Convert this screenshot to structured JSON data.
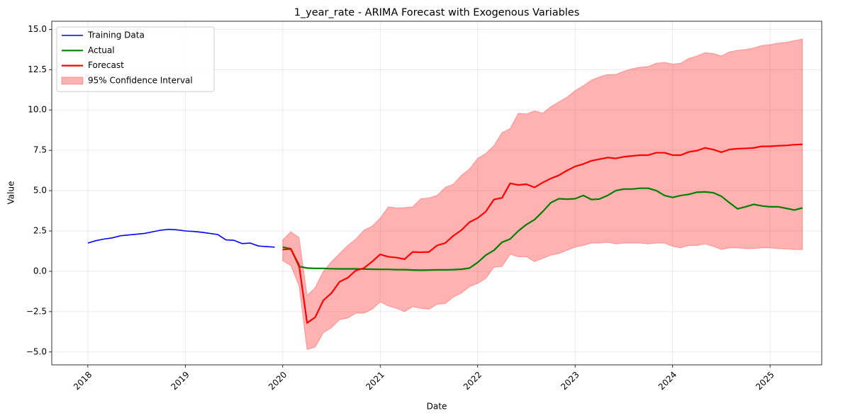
{
  "chart_data": {
    "type": "line",
    "title": "1_year_rate - ARIMA Forecast with Exogenous Variables",
    "x_label": "Date",
    "y_label": "Value",
    "xlim": [
      2017.63,
      2025.53
    ],
    "xticks": [
      2018,
      2019,
      2020,
      2021,
      2022,
      2023,
      2024,
      2025
    ],
    "ylim": [
      -5.8,
      15.5
    ],
    "yticks": [
      {
        "value": -5,
        "label": "−5.0"
      },
      {
        "value": -2.5,
        "label": "−2.5"
      },
      {
        "value": 0,
        "label": "0.0"
      },
      {
        "value": 2.5,
        "label": "2.5"
      },
      {
        "value": 5,
        "label": "5.0"
      },
      {
        "value": 7.5,
        "label": "7.5"
      },
      {
        "value": 10,
        "label": "10.0"
      },
      {
        "value": 12.5,
        "label": "12.5"
      },
      {
        "value": 15,
        "label": "15.0"
      }
    ],
    "grid": true,
    "legend": "upper left",
    "series": [
      {
        "name": "Training Data",
        "color": "#0000ff",
        "x": [
          2018,
          2018.083,
          2018.167,
          2018.25,
          2018.333,
          2018.417,
          2018.5,
          2018.583,
          2018.667,
          2018.75,
          2018.833,
          2018.917,
          2019,
          2019.083,
          2019.167,
          2019.25,
          2019.333,
          2019.417,
          2019.5,
          2019.583,
          2019.667,
          2019.75,
          2019.833,
          2019.917
        ],
        "values": [
          1.75,
          1.9,
          2.0,
          2.07,
          2.2,
          2.25,
          2.3,
          2.35,
          2.45,
          2.55,
          2.6,
          2.57,
          2.5,
          2.47,
          2.42,
          2.35,
          2.28,
          1.95,
          1.92,
          1.72,
          1.75,
          1.57,
          1.53,
          1.5
        ]
      },
      {
        "name": "Actual",
        "color": "#008000",
        "x": [
          2020,
          2020.083,
          2020.167,
          2020.25,
          2020.333,
          2020.417,
          2020.5,
          2020.583,
          2020.667,
          2020.75,
          2020.833,
          2020.917,
          2021,
          2021.083,
          2021.167,
          2021.25,
          2021.333,
          2021.417,
          2021.5,
          2021.583,
          2021.667,
          2021.75,
          2021.833,
          2021.917,
          2022,
          2022.083,
          2022.167,
          2022.25,
          2022.333,
          2022.417,
          2022.5,
          2022.583,
          2022.667,
          2022.75,
          2022.833,
          2022.917,
          2023,
          2023.083,
          2023.167,
          2023.25,
          2023.333,
          2023.417,
          2023.5,
          2023.583,
          2023.667,
          2023.75,
          2023.833,
          2023.917,
          2024,
          2024.083,
          2024.167,
          2024.25,
          2024.333,
          2024.417,
          2024.5,
          2024.583,
          2024.667,
          2024.75,
          2024.833,
          2024.917,
          2025,
          2025.083,
          2025.167,
          2025.25,
          2025.333
        ],
        "values": [
          1.5,
          1.4,
          0.3,
          0.2,
          0.18,
          0.18,
          0.16,
          0.15,
          0.15,
          0.15,
          0.14,
          0.13,
          0.12,
          0.12,
          0.1,
          0.1,
          0.08,
          0.07,
          0.08,
          0.09,
          0.09,
          0.1,
          0.13,
          0.2,
          0.55,
          1.0,
          1.3,
          1.8,
          2.0,
          2.5,
          2.9,
          3.2,
          3.7,
          4.25,
          4.5,
          4.47,
          4.5,
          4.7,
          4.45,
          4.48,
          4.7,
          5.0,
          5.1,
          5.1,
          5.15,
          5.15,
          5.0,
          4.7,
          4.58,
          4.7,
          4.77,
          4.9,
          4.92,
          4.87,
          4.65,
          4.25,
          3.87,
          4.0,
          4.15,
          4.05,
          4.0,
          4.0,
          3.9,
          3.8,
          3.93
        ]
      },
      {
        "name": "Forecast",
        "color": "#ff0000",
        "x": [
          2020,
          2020.083,
          2020.167,
          2020.25,
          2020.333,
          2020.417,
          2020.5,
          2020.583,
          2020.667,
          2020.75,
          2020.833,
          2020.917,
          2021,
          2021.083,
          2021.167,
          2021.25,
          2021.333,
          2021.417,
          2021.5,
          2021.583,
          2021.667,
          2021.75,
          2021.833,
          2021.917,
          2022,
          2022.083,
          2022.167,
          2022.25,
          2022.333,
          2022.417,
          2022.5,
          2022.583,
          2022.667,
          2022.75,
          2022.833,
          2022.917,
          2023,
          2023.083,
          2023.167,
          2023.25,
          2023.333,
          2023.417,
          2023.5,
          2023.583,
          2023.667,
          2023.75,
          2023.833,
          2023.917,
          2024,
          2024.083,
          2024.167,
          2024.25,
          2024.333,
          2024.417,
          2024.5,
          2024.583,
          2024.667,
          2024.75,
          2024.833,
          2024.917,
          2025,
          2025.083,
          2025.167,
          2025.25,
          2025.333
        ],
        "values": [
          1.35,
          1.38,
          0.4,
          -3.2,
          -2.85,
          -1.8,
          -1.35,
          -0.65,
          -0.4,
          0.05,
          0.2,
          0.6,
          1.05,
          0.9,
          0.85,
          0.75,
          1.2,
          1.18,
          1.2,
          1.6,
          1.75,
          2.2,
          2.55,
          3.05,
          3.3,
          3.7,
          4.45,
          4.55,
          5.45,
          5.35,
          5.4,
          5.2,
          5.5,
          5.75,
          5.95,
          6.25,
          6.5,
          6.65,
          6.85,
          6.95,
          7.05,
          7.0,
          7.1,
          7.15,
          7.2,
          7.2,
          7.35,
          7.35,
          7.2,
          7.2,
          7.4,
          7.48,
          7.65,
          7.55,
          7.38,
          7.55,
          7.6,
          7.62,
          7.65,
          7.75,
          7.75,
          7.78,
          7.8,
          7.85,
          7.87
        ]
      }
    ],
    "band": {
      "name": "95% Confidence Interval",
      "color": "#ff0000",
      "x": [
        2020,
        2020.083,
        2020.167,
        2020.25,
        2020.333,
        2020.417,
        2020.5,
        2020.583,
        2020.667,
        2020.75,
        2020.833,
        2020.917,
        2021,
        2021.083,
        2021.167,
        2021.25,
        2021.333,
        2021.417,
        2021.5,
        2021.583,
        2021.667,
        2021.75,
        2021.833,
        2021.917,
        2022,
        2022.083,
        2022.167,
        2022.25,
        2022.333,
        2022.417,
        2022.5,
        2022.583,
        2022.667,
        2022.75,
        2022.833,
        2022.917,
        2023,
        2023.083,
        2023.167,
        2023.25,
        2023.333,
        2023.417,
        2023.5,
        2023.583,
        2023.667,
        2023.75,
        2023.833,
        2023.917,
        2024,
        2024.083,
        2024.167,
        2024.25,
        2024.333,
        2024.417,
        2024.5,
        2024.583,
        2024.667,
        2024.75,
        2024.833,
        2024.917,
        2025,
        2025.083,
        2025.167,
        2025.25,
        2025.333
      ],
      "upper": [
        1.95,
        2.45,
        2.1,
        -1.5,
        -1.0,
        0.0,
        0.6,
        1.1,
        1.6,
        2.0,
        2.55,
        2.8,
        3.3,
        4.0,
        3.93,
        3.95,
        4.0,
        4.5,
        4.55,
        4.7,
        5.2,
        5.4,
        5.95,
        6.35,
        7.0,
        7.3,
        7.8,
        8.6,
        8.85,
        9.8,
        9.75,
        9.95,
        9.8,
        10.2,
        10.5,
        10.8,
        11.2,
        11.5,
        11.85,
        12.05,
        12.2,
        12.2,
        12.4,
        12.55,
        12.65,
        12.7,
        12.9,
        12.95,
        12.85,
        12.9,
        13.2,
        13.35,
        13.55,
        13.5,
        13.35,
        13.6,
        13.7,
        13.75,
        13.85,
        14.0,
        14.05,
        14.15,
        14.2,
        14.3,
        14.4
      ],
      "lower": [
        0.65,
        0.35,
        -0.9,
        -4.85,
        -4.7,
        -3.8,
        -3.5,
        -3.0,
        -2.9,
        -2.6,
        -2.6,
        -2.35,
        -1.9,
        -2.15,
        -2.3,
        -2.5,
        -2.2,
        -2.3,
        -2.35,
        -2.05,
        -2.0,
        -1.6,
        -1.35,
        -0.95,
        -0.75,
        -0.45,
        0.25,
        0.3,
        1.05,
        0.9,
        0.9,
        0.6,
        0.8,
        1.0,
        1.1,
        1.3,
        1.5,
        1.6,
        1.75,
        1.75,
        1.8,
        1.7,
        1.75,
        1.75,
        1.75,
        1.7,
        1.75,
        1.75,
        1.55,
        1.45,
        1.6,
        1.6,
        1.7,
        1.55,
        1.35,
        1.45,
        1.45,
        1.4,
        1.4,
        1.45,
        1.45,
        1.4,
        1.38,
        1.35,
        1.35
      ]
    }
  }
}
